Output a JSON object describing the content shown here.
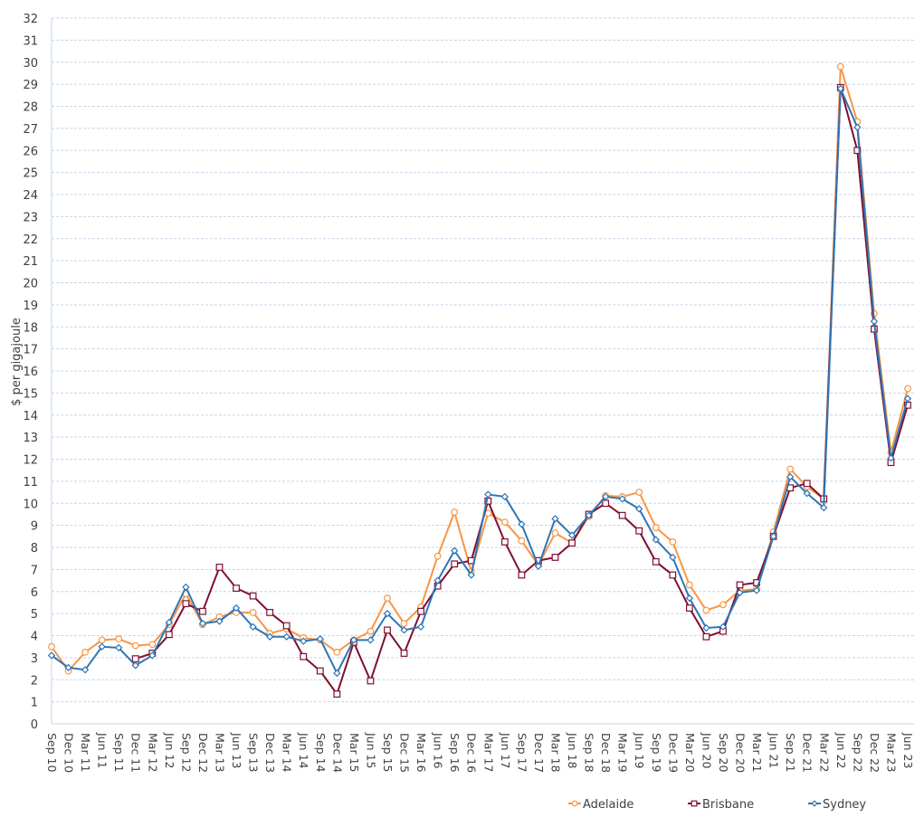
{
  "chart_data": {
    "type": "line",
    "title": "",
    "xlabel": "",
    "ylabel": "$ per gigajoule",
    "ylim": [
      0,
      32
    ],
    "yticks": [
      0,
      1,
      2,
      3,
      4,
      5,
      6,
      7,
      8,
      9,
      10,
      11,
      12,
      13,
      14,
      15,
      16,
      17,
      18,
      19,
      20,
      21,
      22,
      23,
      24,
      25,
      26,
      27,
      28,
      29,
      30,
      31,
      32
    ],
    "grid": true,
    "legend_position": "bottom-right",
    "categories": [
      "Sep 10",
      "Dec 10",
      "Mar 11",
      "Jun 11",
      "Sep 11",
      "Dec 11",
      "Mar 12",
      "Jun 12",
      "Sep 12",
      "Dec 12",
      "Mar 13",
      "Jun 13",
      "Sep 13",
      "Dec 13",
      "Mar 14",
      "Jun 14",
      "Sep 14",
      "Dec 14",
      "Mar 15",
      "Jun 15",
      "Sep 15",
      "Dec 15",
      "Mar 16",
      "Jun 16",
      "Sep 16",
      "Dec 16",
      "Mar 17",
      "Jun 17",
      "Sep 17",
      "Dec 17",
      "Mar 18",
      "Jun 18",
      "Sep 18",
      "Dec 18",
      "Mar 19",
      "Jun 19",
      "Sep 19",
      "Dec 19",
      "Mar 20",
      "Jun 20",
      "Sep 20",
      "Dec 20",
      "Mar 21",
      "Jun 21",
      "Sep 21",
      "Dec 21",
      "Mar 22",
      "Jun 22",
      "Sep 22",
      "Dec 22",
      "Mar 23",
      "Jun 23"
    ],
    "series": [
      {
        "name": "Adelaide",
        "color": "#F79646",
        "marker": "circle",
        "values": [
          3.5,
          2.4,
          3.25,
          3.8,
          3.85,
          3.55,
          3.6,
          4.5,
          5.9,
          4.5,
          4.85,
          5.05,
          5.05,
          4.1,
          4.3,
          3.9,
          3.8,
          3.25,
          3.8,
          4.2,
          5.7,
          4.55,
          5.3,
          7.6,
          9.6,
          6.9,
          9.55,
          9.15,
          8.3,
          7.2,
          8.65,
          8.2,
          9.4,
          10.35,
          10.3,
          10.5,
          8.9,
          8.25,
          6.3,
          5.15,
          5.4,
          6.05,
          6.1,
          8.7,
          11.55,
          10.75,
          10.2,
          29.8,
          27.3,
          18.6,
          12.3,
          15.2
        ]
      },
      {
        "name": "Brisbane",
        "color": "#7F0F2F",
        "marker": "square",
        "values": [
          null,
          null,
          null,
          null,
          null,
          2.95,
          3.2,
          4.05,
          5.45,
          5.1,
          7.1,
          6.15,
          5.8,
          5.05,
          4.45,
          3.05,
          2.4,
          1.35,
          3.7,
          1.95,
          4.25,
          3.2,
          5.1,
          6.25,
          7.25,
          7.4,
          10.1,
          8.25,
          6.75,
          7.4,
          7.55,
          8.2,
          9.5,
          10.0,
          9.45,
          8.75,
          7.35,
          6.75,
          5.25,
          3.95,
          4.2,
          6.3,
          6.4,
          8.5,
          10.7,
          10.9,
          10.2,
          28.85,
          26.0,
          17.9,
          11.85,
          14.45
        ]
      },
      {
        "name": "Sydney",
        "color": "#2E75B6",
        "marker": "diamond",
        "values": [
          3.1,
          2.55,
          2.45,
          3.5,
          3.45,
          2.65,
          3.1,
          4.6,
          6.2,
          4.55,
          4.65,
          5.25,
          4.4,
          3.95,
          3.95,
          3.75,
          3.85,
          2.3,
          3.8,
          3.8,
          5.0,
          4.25,
          4.4,
          6.5,
          7.85,
          6.75,
          10.4,
          10.3,
          9.05,
          7.15,
          9.3,
          8.55,
          9.45,
          10.3,
          10.2,
          9.75,
          8.35,
          7.55,
          5.7,
          4.35,
          4.4,
          5.95,
          6.05,
          8.5,
          11.2,
          10.45,
          9.8,
          28.8,
          27.05,
          18.25,
          12.05,
          14.75
        ]
      }
    ]
  },
  "axis": {
    "y_title": "$ per gigajoule"
  },
  "legend": {
    "items": [
      {
        "label": "Adelaide",
        "color": "#F79646",
        "marker": "circle"
      },
      {
        "label": "Brisbane",
        "color": "#7F0F2F",
        "marker": "square"
      },
      {
        "label": "Sydney",
        "color": "#2E75B6",
        "marker": "diamond"
      }
    ]
  },
  "style": {
    "grid_color": "#C5D5EA",
    "axis_color": "#BDD7EE",
    "text_color": "#404040"
  }
}
